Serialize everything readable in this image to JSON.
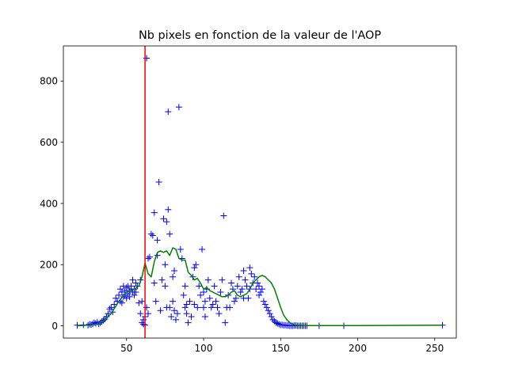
{
  "chart_data": {
    "type": "scatter",
    "title": "Nb pixels en fonction de la valeur de l'AOP",
    "xlabel": "",
    "ylabel": "",
    "xlim": [
      9,
      264
    ],
    "ylim": [
      -40,
      915
    ],
    "xticks": [
      50,
      100,
      150,
      200,
      250
    ],
    "yticks": [
      0,
      200,
      400,
      600,
      800
    ],
    "grid": false,
    "legend": "none",
    "colors": {
      "scatter": "#0000ff",
      "smooth": "#008000",
      "vline": "#ff0000",
      "axes": "#000000"
    },
    "vertical_line": {
      "x": 62
    },
    "series": [
      {
        "kind": "scatter",
        "marker": "+",
        "x": [
          18,
          22,
          25,
          26,
          27,
          28,
          29,
          30,
          31,
          32,
          33,
          34,
          35,
          36,
          37,
          38,
          39,
          40,
          41,
          42,
          43,
          44,
          45,
          46,
          46,
          47,
          47,
          48,
          48,
          49,
          49,
          50,
          50,
          51,
          51,
          52,
          52,
          53,
          53,
          54,
          54,
          55,
          55,
          56,
          56,
          57,
          58,
          59,
          59,
          60,
          60,
          61,
          61,
          62,
          62,
          63,
          63,
          64,
          64,
          65,
          66,
          67,
          68,
          68,
          69,
          70,
          70,
          71,
          72,
          73,
          74,
          75,
          75,
          76,
          76,
          77,
          77,
          78,
          78,
          79,
          80,
          80,
          81,
          81,
          82,
          83,
          84,
          85,
          86,
          87,
          88,
          88,
          89,
          89,
          90,
          91,
          92,
          93,
          94,
          94,
          95,
          96,
          97,
          98,
          99,
          100,
          100,
          101,
          101,
          102,
          103,
          104,
          105,
          106,
          107,
          108,
          109,
          110,
          111,
          112,
          113,
          114,
          115,
          116,
          117,
          118,
          119,
          120,
          121,
          122,
          123,
          124,
          125,
          126,
          126,
          127,
          128,
          129,
          130,
          130,
          131,
          132,
          133,
          134,
          135,
          136,
          136,
          137,
          138,
          139,
          140,
          141,
          142,
          143,
          144,
          145,
          146,
          147,
          148,
          149,
          150,
          151,
          152,
          153,
          154,
          155,
          156,
          157,
          158,
          159,
          160,
          161,
          162,
          163,
          164,
          165,
          166,
          167,
          175,
          191,
          255
        ],
        "y": [
          2,
          3,
          2,
          5,
          4,
          6,
          10,
          8,
          12,
          6,
          10,
          14,
          18,
          22,
          30,
          40,
          55,
          60,
          45,
          70,
          90,
          80,
          100,
          80,
          120,
          110,
          75,
          130,
          95,
          115,
          100,
          125,
          90,
          130,
          105,
          115,
          95,
          120,
          130,
          110,
          150,
          100,
          120,
          140,
          110,
          130,
          75,
          150,
          40,
          80,
          10,
          20,
          5,
          2,
          30,
          60,
          875,
          40,
          220,
          225,
          300,
          295,
          140,
          370,
          80,
          230,
          280,
          470,
          50,
          150,
          350,
          200,
          130,
          60,
          340,
          700,
          380,
          60,
          300,
          30,
          80,
          160,
          180,
          50,
          20,
          40,
          715,
          250,
          220,
          100,
          60,
          130,
          40,
          70,
          10,
          80,
          30,
          160,
          70,
          190,
          200,
          60,
          130,
          100,
          250,
          110,
          60,
          80,
          30,
          120,
          150,
          90,
          60,
          70,
          130,
          80,
          60,
          40,
          110,
          150,
          360,
          10,
          60,
          100,
          60,
          140,
          120,
          80,
          90,
          130,
          160,
          110,
          120,
          90,
          180,
          150,
          130,
          90,
          120,
          190,
          170,
          140,
          160,
          120,
          140,
          130,
          100,
          110,
          120,
          80,
          70,
          60,
          50,
          40,
          30,
          20,
          15,
          10,
          8,
          5,
          3,
          3,
          2,
          2,
          1,
          1,
          0,
          0,
          0,
          1,
          1,
          0,
          0,
          0,
          0,
          0,
          0,
          0,
          0,
          0,
          2
        ],
        "_note": "approximate point cloud read from the figure"
      },
      {
        "kind": "line",
        "x": [
          18,
          25,
          30,
          35,
          40,
          45,
          50,
          55,
          58,
          60,
          62,
          64,
          66,
          68,
          70,
          72,
          74,
          76,
          78,
          80,
          82,
          84,
          86,
          88,
          90,
          92,
          94,
          96,
          98,
          100,
          102,
          104,
          106,
          108,
          110,
          112,
          114,
          116,
          118,
          120,
          122,
          124,
          126,
          128,
          130,
          132,
          134,
          136,
          138,
          140,
          142,
          144,
          146,
          148,
          150,
          152,
          154,
          156,
          158,
          160,
          165,
          175,
          200,
          255
        ],
        "y": [
          0,
          2,
          5,
          15,
          40,
          80,
          110,
          120,
          130,
          160,
          205,
          170,
          160,
          210,
          240,
          245,
          240,
          245,
          230,
          255,
          250,
          220,
          215,
          215,
          175,
          165,
          150,
          155,
          140,
          120,
          125,
          115,
          110,
          105,
          100,
          95,
          95,
          100,
          110,
          115,
          100,
          95,
          100,
          105,
          120,
          140,
          150,
          160,
          165,
          160,
          150,
          140,
          120,
          90,
          60,
          35,
          20,
          10,
          5,
          2,
          1,
          1,
          1,
          2
        ]
      }
    ]
  }
}
